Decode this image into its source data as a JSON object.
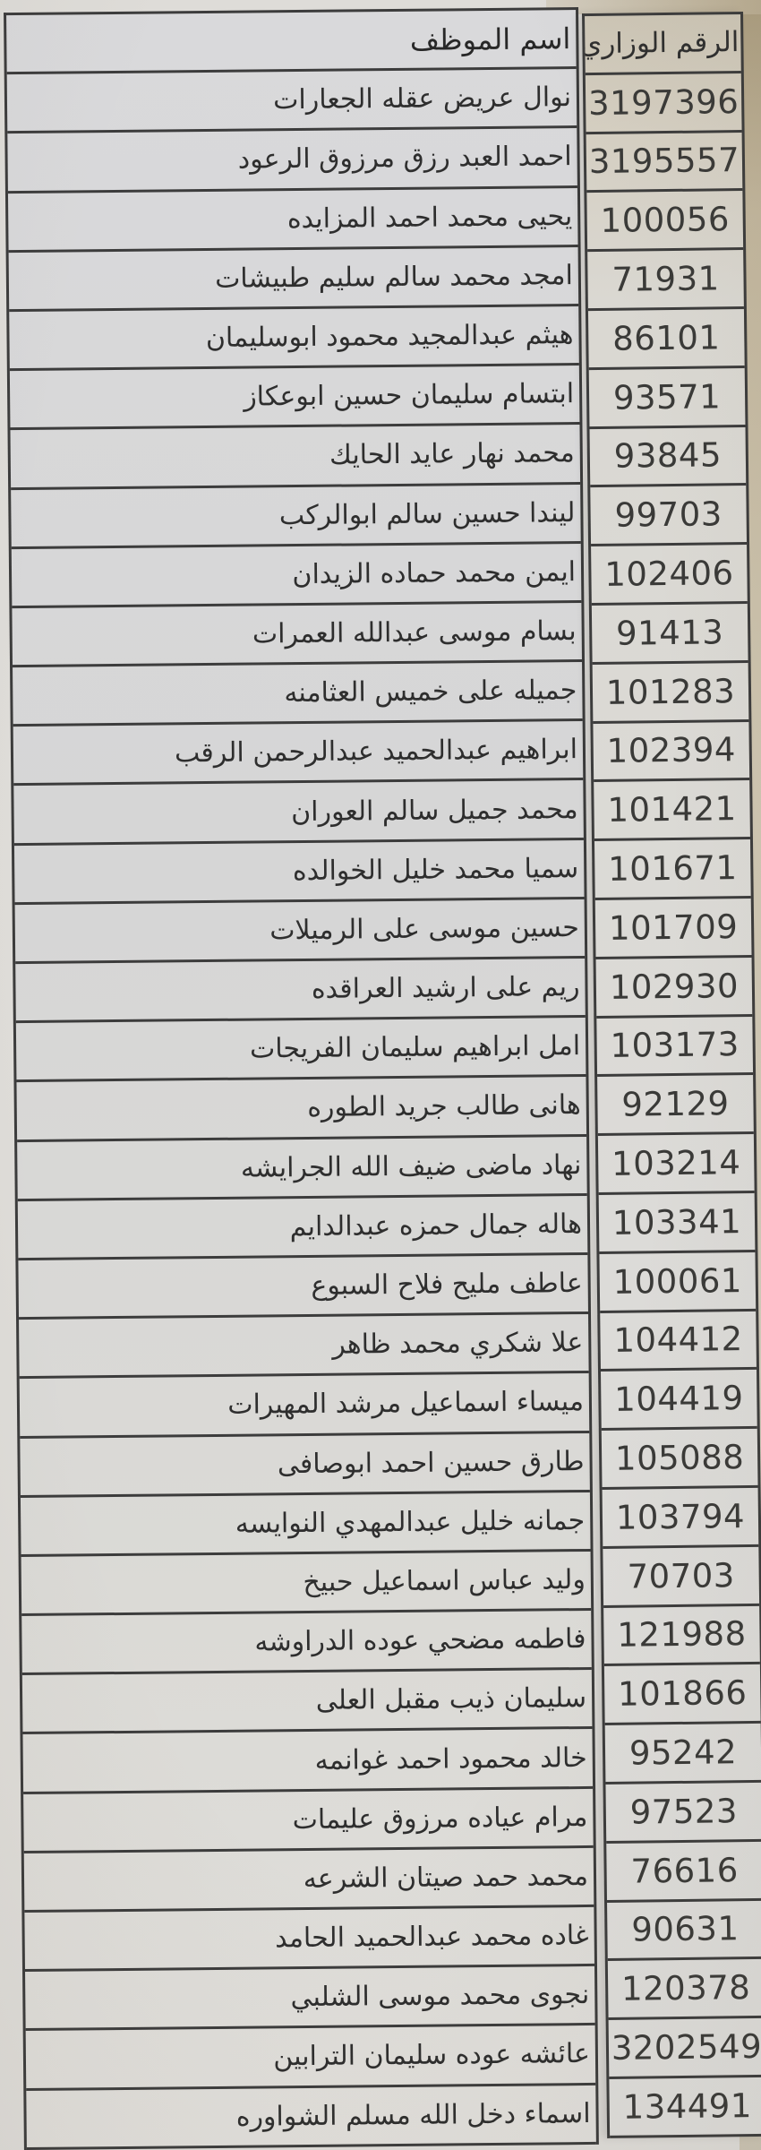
{
  "table": {
    "header": {
      "name_col": "اسم الموظف",
      "number_col": "الرقم الوزاري"
    },
    "rows": [
      {
        "name": "نوال عريض عقله الجعارات",
        "number": "3197396"
      },
      {
        "name": "احمد العبد رزق مرزوق الرعود",
        "number": "3195557"
      },
      {
        "name": "يحيى محمد احمد المزايده",
        "number": "100056"
      },
      {
        "name": "امجد محمد سالم سليم طبيشات",
        "number": "71931"
      },
      {
        "name": "هيثم عبدالمجيد محمود ابوسليمان",
        "number": "86101"
      },
      {
        "name": "ابتسام سليمان حسين ابوعكاز",
        "number": "93571"
      },
      {
        "name": "محمد نهار عايد الحايك",
        "number": "93845"
      },
      {
        "name": "ليندا حسين سالم ابوالركب",
        "number": "99703"
      },
      {
        "name": "ايمن محمد حماده الزيدان",
        "number": "102406"
      },
      {
        "name": "بسام موسى عبدالله العمرات",
        "number": "91413"
      },
      {
        "name": "جميله على خميس العثامنه",
        "number": "101283"
      },
      {
        "name": "ابراهيم عبدالحميد عبدالرحمن الرقب",
        "number": "102394"
      },
      {
        "name": "محمد جميل سالم العوران",
        "number": "101421"
      },
      {
        "name": "سميا محمد خليل الخوالده",
        "number": "101671"
      },
      {
        "name": "حسين موسى على الرميلات",
        "number": "101709"
      },
      {
        "name": "ريم على ارشيد العراقده",
        "number": "102930"
      },
      {
        "name": "امل ابراهيم سليمان الفريجات",
        "number": "103173"
      },
      {
        "name": "هانى طالب جريد الطوره",
        "number": "92129"
      },
      {
        "name": "نهاد ماضى ضيف الله الجرايشه",
        "number": "103214"
      },
      {
        "name": "هاله جمال حمزه عبدالدايم",
        "number": "103341"
      },
      {
        "name": "عاطف مليح فلاح السبوع",
        "number": "100061"
      },
      {
        "name": "علا شكري محمد ظاهر",
        "number": "104412"
      },
      {
        "name": "ميساء اسماعيل مرشد المهيرات",
        "number": "104419"
      },
      {
        "name": "طارق حسين احمد ابوصافى",
        "number": "105088"
      },
      {
        "name": "جمانه خليل عبدالمهدي النوايسه",
        "number": "103794"
      },
      {
        "name": "وليد عباس اسماعيل حبيخ",
        "number": "70703"
      },
      {
        "name": "فاطمه مضحي عوده الدراوشه",
        "number": "121988"
      },
      {
        "name": "سليمان ذيب مقبل العلى",
        "number": "101866"
      },
      {
        "name": "خالد محمود احمد غوانمه",
        "number": "95242"
      },
      {
        "name": "مرام عياده مرزوق عليمات",
        "number": "97523"
      },
      {
        "name": "محمد حمد صيتان الشرعه",
        "number": "76616"
      },
      {
        "name": "غاده محمد عبدالحميد الحامد",
        "number": "90631"
      },
      {
        "name": "نجوى محمد موسى الشلبي",
        "number": "120378"
      },
      {
        "name": "عائشه عوده سليمان الترابين",
        "number": "3202549"
      },
      {
        "name": "اسماء دخل الله مسلم الشواوره",
        "number": "134491"
      }
    ],
    "colors": {
      "border": "#3c3c3c",
      "paper": "#d9d9db",
      "surface_tan": "#b9ac91",
      "text": "#2e2e2e"
    }
  }
}
